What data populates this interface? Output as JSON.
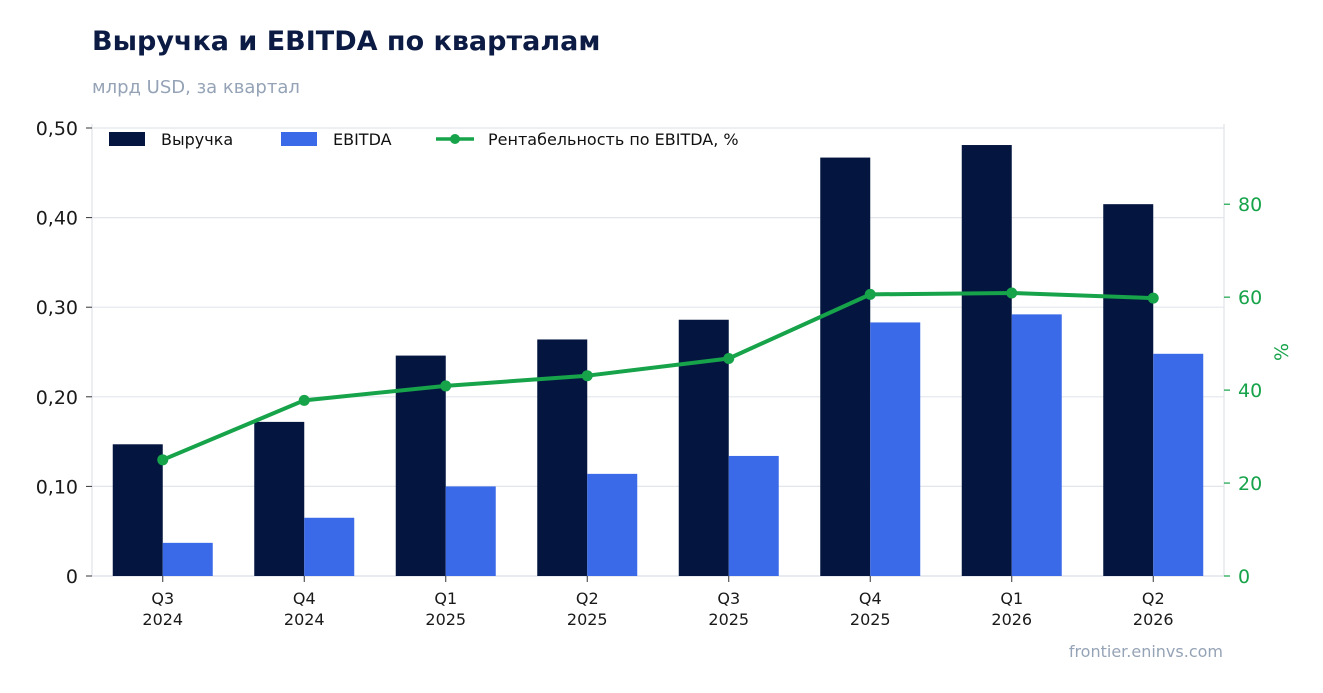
{
  "header": {
    "title": "Выручка и EBITDA по кварталам",
    "subtitle": "млрд USD, за квартал"
  },
  "footer": {
    "source": "frontier.eninvs.com"
  },
  "colors": {
    "revenue": "#041640",
    "ebitda": "#3b6ae8",
    "margin": "#16a34a",
    "grid": "#e2e6ec",
    "axis_right": "#16a34a"
  },
  "chart_data": {
    "type": "bar",
    "categories": [
      [
        "Q3",
        "2024"
      ],
      [
        "Q4",
        "2024"
      ],
      [
        "Q1",
        "2025"
      ],
      [
        "Q2",
        "2025"
      ],
      [
        "Q3",
        "2025"
      ],
      [
        "Q4",
        "2025"
      ],
      [
        "Q1",
        "2026"
      ],
      [
        "Q2",
        "2026"
      ]
    ],
    "series": [
      {
        "name": "Выручка",
        "kind": "bar",
        "axis": "left",
        "values": [
          0.147,
          0.172,
          0.246,
          0.264,
          0.286,
          0.467,
          0.481,
          0.415
        ]
      },
      {
        "name": "EBITDA",
        "kind": "bar",
        "axis": "left",
        "values": [
          0.037,
          0.065,
          0.1,
          0.114,
          0.134,
          0.283,
          0.292,
          0.248
        ]
      },
      {
        "name": "Рентабельность по EBITDA, %",
        "kind": "line",
        "axis": "right",
        "values": [
          25.0,
          37.8,
          40.9,
          43.1,
          46.8,
          60.6,
          60.9,
          59.8
        ]
      }
    ],
    "y_left": {
      "ylim": [
        0,
        0.5
      ],
      "ticks": [
        {
          "value": 0,
          "label": "0"
        },
        {
          "value": 0.1,
          "label": "0,10"
        },
        {
          "value": 0.2,
          "label": "0,20"
        },
        {
          "value": 0.3,
          "label": "0,30"
        },
        {
          "value": 0.4,
          "label": "0,40"
        },
        {
          "value": 0.5,
          "label": "0,50"
        }
      ]
    },
    "y_right": {
      "ylabel": "%",
      "ylim": [
        0,
        96.4
      ],
      "ticks": [
        {
          "value": 0,
          "label": "0"
        },
        {
          "value": 20,
          "label": "20"
        },
        {
          "value": 40,
          "label": "40"
        },
        {
          "value": 60,
          "label": "60"
        },
        {
          "value": 80,
          "label": "80"
        }
      ]
    },
    "grid": true,
    "legend_position": "top-left"
  }
}
